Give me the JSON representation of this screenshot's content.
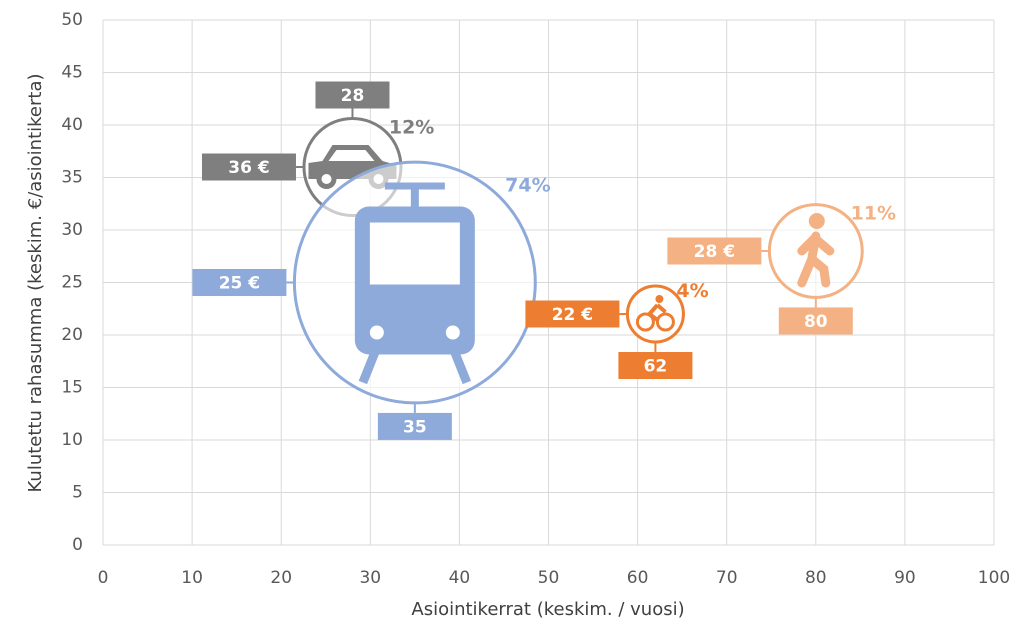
{
  "chart_data": {
    "type": "bubble",
    "x_label": "Asiointikerrat (keskim. / vuosi)",
    "y_label": "Kulutettu rahasumma (keskim. €/asiointikerta)",
    "xlim": [
      0,
      100
    ],
    "xticks": [
      0,
      10,
      20,
      30,
      40,
      50,
      60,
      70,
      80,
      90,
      100
    ],
    "ylim": [
      0,
      50
    ],
    "yticks": [
      0,
      5,
      10,
      15,
      20,
      25,
      30,
      35,
      40,
      45,
      50
    ],
    "grid": true,
    "series": [
      {
        "color": "#7f7f7f",
        "x": [
          28
        ],
        "values": [
          36
        ],
        "sizes": [
          12
        ],
        "value_labels": [
          "36 €"
        ],
        "size_labels": [
          "12%"
        ]
      },
      {
        "color": "#8eaadb",
        "x": [
          35
        ],
        "values": [
          25
        ],
        "sizes": [
          74
        ],
        "value_labels": [
          "25 €"
        ],
        "size_labels": [
          "74%"
        ]
      },
      {
        "color": "#ed7d31",
        "x": [
          62
        ],
        "values": [
          22
        ],
        "sizes": [
          4
        ],
        "value_labels": [
          "22 €"
        ],
        "size_labels": [
          "4%"
        ]
      },
      {
        "color": "#f4b183",
        "x": [
          80
        ],
        "values": [
          28
        ],
        "sizes": [
          11
        ],
        "value_labels": [
          "28 €"
        ],
        "size_labels": [
          "11%"
        ]
      }
    ]
  }
}
